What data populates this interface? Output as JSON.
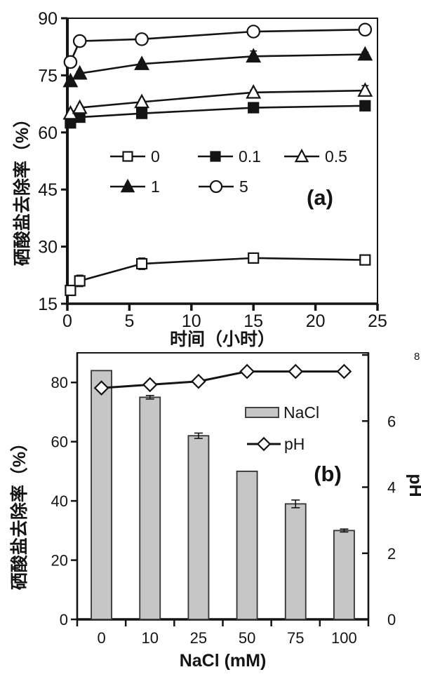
{
  "chart_data": [
    {
      "id": "a",
      "type": "line",
      "annotation": "(a)",
      "xlabel": "时间（小时）",
      "ylabel": "硒酸盐去除率（%）",
      "xlim": [
        0,
        25
      ],
      "ylim": [
        15,
        90
      ],
      "xticks": [
        0,
        5,
        10,
        15,
        20,
        25
      ],
      "yticks": [
        15,
        30,
        45,
        60,
        75,
        90
      ],
      "grid": false,
      "legend_position": "inside-center",
      "x": [
        0.25,
        1,
        6,
        15,
        24
      ],
      "series": [
        {
          "name": "0",
          "marker": "open-square",
          "values": [
            18.5,
            21,
            25.5,
            27,
            26.5
          ],
          "errors": [
            1.2,
            1.5,
            1.5,
            1.0,
            0.6
          ]
        },
        {
          "name": "0.1",
          "marker": "filled-square",
          "values": [
            62.5,
            64,
            65,
            66.5,
            67
          ],
          "errors": [
            0.5,
            0.5,
            0.5,
            0.5,
            1.2
          ]
        },
        {
          "name": "0.5",
          "marker": "open-triangle",
          "values": [
            65,
            66.5,
            68,
            70.5,
            71
          ],
          "errors": [
            0.5,
            0.5,
            0.5,
            0.6,
            1.3
          ]
        },
        {
          "name": "1",
          "marker": "filled-triangle",
          "values": [
            73.5,
            75.5,
            78,
            80,
            80.5
          ],
          "errors": [
            0.6,
            0.5,
            0.5,
            1.4,
            0.6
          ]
        },
        {
          "name": "5",
          "marker": "open-circle",
          "values": [
            78.5,
            84,
            84.5,
            86.5,
            87
          ],
          "errors": [
            0.5,
            0.5,
            0.6,
            1.2,
            0.6
          ]
        }
      ],
      "line_color": "#141414"
    },
    {
      "id": "b",
      "type": "bar+line",
      "annotation": "(b)",
      "xlabel": "NaCl (mM)",
      "ylabel_left": "硒酸盐去除率（%）",
      "ylabel_right": "pH",
      "categories": [
        "0",
        "10",
        "25",
        "50",
        "75",
        "100"
      ],
      "bars": {
        "name": "NaCl",
        "values": [
          84,
          75,
          62,
          50,
          39,
          30
        ],
        "errors": [
          0,
          0.6,
          0.9,
          0,
          1.3,
          0.5
        ],
        "fill": "#c6c6c6",
        "stroke": "#333333"
      },
      "line": {
        "name": "pH",
        "marker": "open-diamond",
        "values": [
          7.0,
          7.1,
          7.2,
          7.5,
          7.5,
          7.5
        ],
        "color": "#141414"
      },
      "ylim_left": [
        0,
        90
      ],
      "yticks_left": [
        0,
        20,
        40,
        60,
        80
      ],
      "ylim_right": [
        0,
        8
      ],
      "yticks_right": [
        0,
        2,
        4,
        6,
        8
      ],
      "grid": false,
      "legend_position": "inside-right"
    }
  ]
}
